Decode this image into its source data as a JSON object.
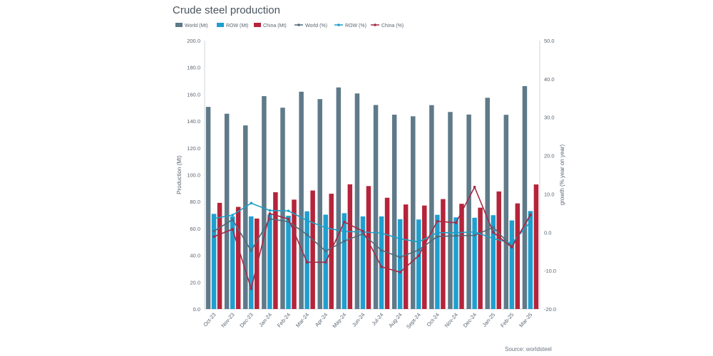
{
  "chart_data": {
    "type": "bar+line",
    "title": "Crude steel production",
    "source": "Source: worldsteel",
    "ylabel_left": "Production (Mt)",
    "ylabel_right": "growth (% year on year)",
    "ylim_left": [
      0,
      200
    ],
    "ylim_right": [
      -20,
      50
    ],
    "yticks_left": [
      "0.0",
      "20.0",
      "40.0",
      "60.0",
      "80.0",
      "100.0",
      "120.0",
      "140.0",
      "160.0",
      "180.0",
      "200.0"
    ],
    "yticks_right": [
      "-20.0",
      "-10.0",
      "0.0",
      "10.0",
      "20.0",
      "30.0",
      "40.0",
      "50.0"
    ],
    "categories": [
      "Oct-23",
      "Nov-23",
      "Dec-23",
      "Jan-24",
      "Feb-24",
      "Mar-24",
      "Apr-24",
      "May-24",
      "Jun-24",
      "Jul-24",
      "Aug-24",
      "Sept-24",
      "Oct-24",
      "Nov-24",
      "Dec-24",
      "Jan-25",
      "Feb-25",
      "Mar-25"
    ],
    "bar_series": [
      {
        "name": "World (Mt)",
        "color": "#5f7a89",
        "values": [
          150.6,
          145.5,
          136.8,
          158.6,
          150.0,
          161.9,
          156.4,
          165.1,
          160.6,
          152.0,
          144.8,
          143.6,
          151.9,
          146.8,
          144.9,
          157.4,
          144.7,
          166.1
        ]
      },
      {
        "name": "ROW (Mt)",
        "color": "#1f9fd0",
        "values": [
          70.9,
          69.0,
          69.0,
          70.5,
          69.5,
          72.8,
          70.3,
          71.4,
          69.0,
          69.0,
          66.9,
          66.7,
          70.2,
          68.3,
          68.0,
          69.9,
          66.0,
          73.0
        ]
      },
      {
        "name": "China (Mt)",
        "color": "#b5243a",
        "values": [
          79.1,
          76.1,
          67.4,
          87.0,
          81.5,
          88.3,
          85.9,
          92.9,
          91.6,
          82.9,
          77.9,
          77.1,
          81.9,
          78.4,
          75.5,
          87.6,
          78.7,
          92.8
        ]
      }
    ],
    "line_series": [
      {
        "name": "World (%)",
        "color": "#4f6b7a",
        "values": [
          0.3,
          3.3,
          -4.8,
          3.5,
          2.8,
          -0.6,
          -4.9,
          -2.3,
          -0.4,
          -4.7,
          -6.5,
          -4.6,
          -1.1,
          -0.9,
          -0.8,
          1.3,
          -3.7,
          4.4
        ]
      },
      {
        "name": "ROW (%)",
        "color": "#1aa0c8",
        "values": [
          3.6,
          4.5,
          7.6,
          5.7,
          5.6,
          3.1,
          1.2,
          0.2,
          0.1,
          -0.2,
          -1.7,
          -2.5,
          -0.1,
          -0.1,
          0.1,
          -1.6,
          -2.9,
          2.7
        ]
      },
      {
        "name": "China (%)",
        "color": "#a52a45",
        "values": [
          -1.1,
          0.8,
          -14.7,
          4.9,
          3.5,
          -7.8,
          -7.8,
          2.7,
          0.3,
          -9.0,
          -10.4,
          -6.1,
          2.9,
          2.5,
          11.8,
          0.0,
          -3.9,
          4.6
        ]
      }
    ]
  }
}
